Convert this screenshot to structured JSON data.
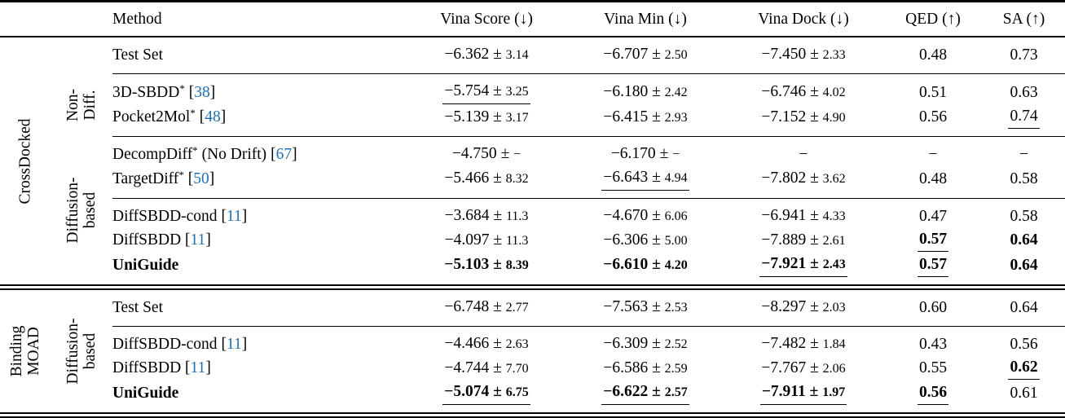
{
  "page": {
    "background": "#ffffff",
    "text_color": "#000000",
    "citation_color": "#1f6fb2"
  },
  "table": {
    "columns": [
      "Method",
      "Vina Score (↓)",
      "Vina Min (↓)",
      "Vina Dock (↓)",
      "QED (↑)",
      "SA (↑)"
    ],
    "sections": [
      {
        "dataset_label_lines": [
          "CrossDocked"
        ],
        "row_groups": [
          {
            "label_lines": [],
            "start": 0,
            "count": 1
          },
          {
            "label_lines": [
              "Non-",
              "Diff."
            ],
            "start": 1,
            "count": 2
          },
          {
            "label_lines": [
              "Diffusion-",
              "based"
            ],
            "start": 3,
            "count": 5
          }
        ],
        "rule_after_rows": [
          0,
          2,
          4
        ],
        "rows": [
          {
            "method": {
              "label": "Test Set"
            },
            "cells": [
              {
                "mean": "−6.362",
                "std": "3.14"
              },
              {
                "mean": "−6.707",
                "std": "2.50"
              },
              {
                "mean": "−7.450",
                "std": "2.33"
              },
              {
                "mean": "0.48"
              },
              {
                "mean": "0.73"
              }
            ]
          },
          {
            "method": {
              "label": "3D-SBDD",
              "sup": "*",
              "cite": "38"
            },
            "cells": [
              {
                "mean": "−5.754",
                "std": "3.25",
                "underline": true
              },
              {
                "mean": "−6.180",
                "std": "2.42"
              },
              {
                "mean": "−6.746",
                "std": "4.02"
              },
              {
                "mean": "0.51"
              },
              {
                "mean": "0.63"
              }
            ]
          },
          {
            "method": {
              "label": "Pocket2Mol",
              "sup": "*",
              "cite": "48"
            },
            "cells": [
              {
                "mean": "−5.139",
                "std": "3.17"
              },
              {
                "mean": "−6.415",
                "std": "2.93"
              },
              {
                "mean": "−7.152",
                "std": "4.90"
              },
              {
                "mean": "0.56"
              },
              {
                "mean": "0.74",
                "underline": true
              }
            ]
          },
          {
            "method": {
              "label": "DecompDiff",
              "sup": "*",
              "note": "(No Drift)",
              "cite": "67"
            },
            "cells": [
              {
                "mean": "−4.750",
                "std": "−"
              },
              {
                "mean": "−6.170",
                "std": "−"
              },
              {
                "dash": true
              },
              {
                "dash": true
              },
              {
                "dash": true
              }
            ]
          },
          {
            "method": {
              "label": "TargetDiff",
              "sup": "*",
              "cite": "50"
            },
            "cells": [
              {
                "mean": "−5.466",
                "std": "8.32"
              },
              {
                "mean": "−6.643",
                "std": "4.94",
                "underline": true
              },
              {
                "mean": "−7.802",
                "std": "3.62"
              },
              {
                "mean": "0.48"
              },
              {
                "mean": "0.58"
              }
            ]
          },
          {
            "method": {
              "label": "DiffSBDD-cond",
              "cite": "11"
            },
            "cells": [
              {
                "mean": "−3.684",
                "std": "11.3"
              },
              {
                "mean": "−4.670",
                "std": "6.06"
              },
              {
                "mean": "−6.941",
                "std": "4.33"
              },
              {
                "mean": "0.47"
              },
              {
                "mean": "0.58"
              }
            ]
          },
          {
            "method": {
              "label": "DiffSBDD",
              "cite": "11"
            },
            "cells": [
              {
                "mean": "−4.097",
                "std": "11.3"
              },
              {
                "mean": "−6.306",
                "std": "5.00"
              },
              {
                "mean": "−7.889",
                "std": "2.61"
              },
              {
                "mean": "0.57",
                "bold": true,
                "underline": true
              },
              {
                "mean": "0.64",
                "bold": true
              }
            ]
          },
          {
            "method": {
              "label": "UniGuide",
              "bold": true
            },
            "cells": [
              {
                "mean": "−5.103",
                "std": "8.39",
                "bold": true
              },
              {
                "mean": "−6.610",
                "std": "4.20",
                "bold": true
              },
              {
                "mean": "−7.921",
                "std": "2.43",
                "bold": true,
                "underline": true
              },
              {
                "mean": "0.57",
                "bold": true,
                "underline": true
              },
              {
                "mean": "0.64",
                "bold": true
              }
            ]
          }
        ]
      },
      {
        "dataset_label_lines": [
          "Binding",
          "MOAD"
        ],
        "row_groups": [
          {
            "label_lines": [
              "Diffusion-",
              "based"
            ],
            "start": 0,
            "count": 4
          }
        ],
        "rule_after_rows": [
          0
        ],
        "rows": [
          {
            "method": {
              "label": "Test Set"
            },
            "cells": [
              {
                "mean": "−6.748",
                "std": "2.77"
              },
              {
                "mean": "−7.563",
                "std": "2.53"
              },
              {
                "mean": "−8.297",
                "std": "2.03"
              },
              {
                "mean": "0.60"
              },
              {
                "mean": "0.64"
              }
            ]
          },
          {
            "method": {
              "label": "DiffSBDD-cond",
              "cite": "11"
            },
            "cells": [
              {
                "mean": "−4.466",
                "std": "2.63"
              },
              {
                "mean": "−6.309",
                "std": "2.52"
              },
              {
                "mean": "−7.482",
                "std": "1.84"
              },
              {
                "mean": "0.43"
              },
              {
                "mean": "0.56"
              }
            ]
          },
          {
            "method": {
              "label": "DiffSBDD",
              "cite": "11"
            },
            "cells": [
              {
                "mean": "−4.744",
                "std": "7.70"
              },
              {
                "mean": "−6.586",
                "std": "2.59"
              },
              {
                "mean": "−7.767",
                "std": "2.06"
              },
              {
                "mean": "0.55"
              },
              {
                "mean": "0.62",
                "bold": true,
                "underline": true
              }
            ]
          },
          {
            "method": {
              "label": "UniGuide",
              "bold": true
            },
            "cells": [
              {
                "mean": "−5.074",
                "std": "6.75",
                "bold": true,
                "underline": true
              },
              {
                "mean": "−6.622",
                "std": "2.57",
                "bold": true,
                "underline": true
              },
              {
                "mean": "−7.911",
                "std": "1.97",
                "bold": true,
                "underline": true
              },
              {
                "mean": "0.56",
                "bold": true,
                "underline": true
              },
              {
                "mean": "0.61"
              }
            ]
          }
        ]
      }
    ]
  }
}
